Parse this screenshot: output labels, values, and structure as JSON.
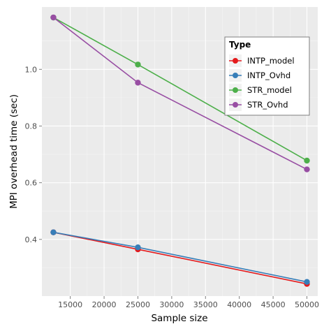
{
  "chart_data": {
    "type": "line",
    "xlabel": "Sample size",
    "ylabel": "MPI overhead time (sec)",
    "x_ticks": [
      15000,
      20000,
      25000,
      30000,
      35000,
      40000,
      45000,
      50000
    ],
    "y_ticks": [
      0.4,
      0.6,
      0.8,
      1.0
    ],
    "x_tick_labels": [
      "15000",
      "20000",
      "25000",
      "30000",
      "35000",
      "40000",
      "45000",
      "50000"
    ],
    "y_tick_labels": [
      "0.4",
      "0.6",
      "0.8",
      "1.0"
    ],
    "xlim": [
      10800,
      51600
    ],
    "ylim": [
      0.2,
      1.22
    ],
    "grid": true,
    "legend": {
      "title": "Type",
      "position": "top-right"
    },
    "series": [
      {
        "name": "INTP_model",
        "color": "#e41a1c",
        "x": [
          12500,
          25000,
          50000
        ],
        "y": [
          0.425,
          0.365,
          0.243
        ]
      },
      {
        "name": "INTP_Ovhd",
        "color": "#377eb8",
        "x": [
          12500,
          25000,
          50000
        ],
        "y": [
          0.425,
          0.372,
          0.25
        ]
      },
      {
        "name": "STR_model",
        "color": "#4daf4a",
        "x": [
          12500,
          25000,
          50000
        ],
        "y": [
          1.183,
          1.017,
          0.678
        ]
      },
      {
        "name": "STR_Ovhd",
        "color": "#984ea3",
        "x": [
          12500,
          25000,
          50000
        ],
        "y": [
          1.183,
          0.953,
          0.647
        ]
      }
    ]
  }
}
